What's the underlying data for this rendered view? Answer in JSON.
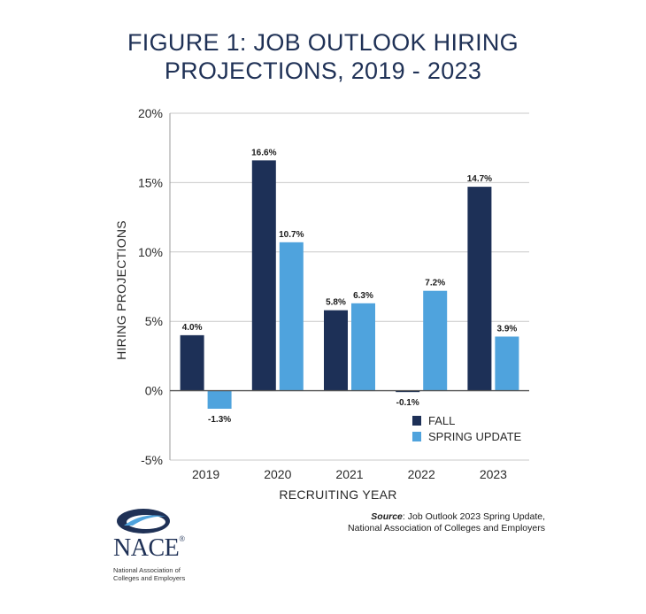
{
  "title_lines": [
    "FIGURE 1: JOB OUTLOOK HIRING",
    "PROJECTIONS, 2019 - 2023"
  ],
  "source": {
    "label": "Source",
    "line1": ": Job Outlook 2023 Spring Update,",
    "line2": "National Association of Colleges and Employers"
  },
  "logo": {
    "name": "NACE",
    "registered": "®",
    "subtitle_line1": "National Association of",
    "subtitle_line2": "Colleges and Employers"
  },
  "chart_data": {
    "type": "bar",
    "categories": [
      "2019",
      "2020",
      "2021",
      "2022",
      "2023"
    ],
    "series": [
      {
        "name": "FALL",
        "values": [
          4.0,
          16.6,
          5.8,
          -0.1,
          14.7
        ],
        "labels": [
          "4.0%",
          "16.6%",
          "5.8%",
          "-0.1%",
          "14.7%"
        ],
        "color": "#1d3057"
      },
      {
        "name": "SPRING UPDATE",
        "values": [
          -1.3,
          10.7,
          6.3,
          7.2,
          3.9
        ],
        "labels": [
          "-1.3%",
          "10.7%",
          "6.3%",
          "7.2%",
          "3.9%"
        ],
        "color": "#4fa3dd"
      }
    ],
    "xlabel": "RECRUITING YEAR",
    "ylabel": "HIRING PROJECTIONS",
    "ylim": [
      -5,
      20
    ],
    "yticks": [
      -5,
      0,
      5,
      10,
      15,
      20
    ],
    "ytick_labels": [
      "-5%",
      "0%",
      "5%",
      "10%",
      "15%",
      "20%"
    ],
    "grid": true,
    "legend_position": "bottom-right"
  }
}
